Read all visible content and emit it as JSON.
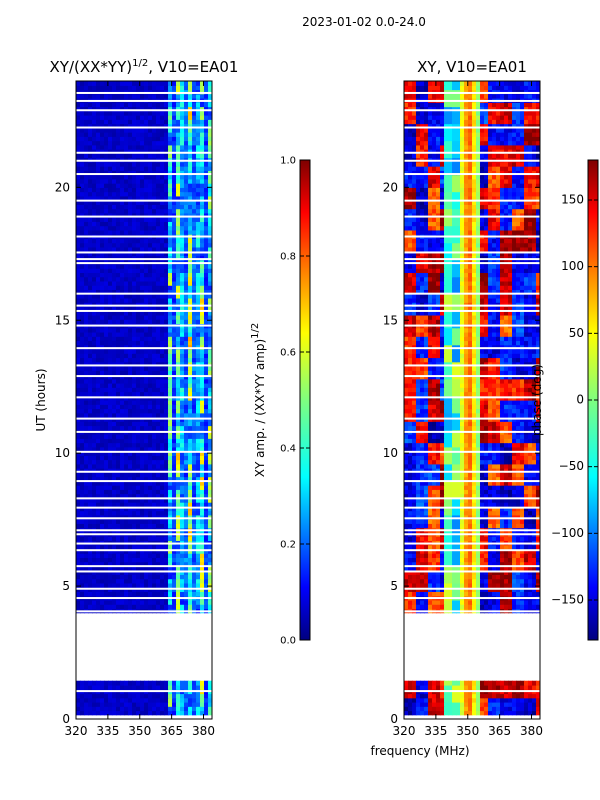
{
  "figure": {
    "suptitle": "2023-01-02 0.0-24.0",
    "xlabel": "frequency (MHz)"
  },
  "colors": {
    "jet": [
      "#00007f",
      "#0000ff",
      "#007fff",
      "#00ffff",
      "#7fff7f",
      "#ffff00",
      "#ff7f00",
      "#ff0000",
      "#7f0000"
    ],
    "gap": "#ffffff",
    "axis": "#000000"
  },
  "chart_data": [
    {
      "type": "heatmap",
      "title_main": "XY/(XX*YY)",
      "title_sup": "1/2",
      "title_rest": ", V10=EA01",
      "xlabel": "",
      "ylabel": "UT (hours)",
      "xlim": [
        320,
        384
      ],
      "ylim": [
        0,
        24
      ],
      "xticks": [
        320,
        335,
        350,
        365,
        380
      ],
      "yticks": [
        0,
        5,
        10,
        15,
        20
      ],
      "colorbar": {
        "label_main": "XY amp. / (XX*YY amp)",
        "label_sup": "1/2",
        "range": [
          0.0,
          1.0
        ],
        "ticks": [
          "0.0",
          "0.2",
          "0.4",
          "0.6",
          "0.8",
          "1.0"
        ],
        "tick_values": [
          0.0,
          0.2,
          0.4,
          0.6,
          0.8,
          1.0
        ]
      },
      "data_ranges_hours": [
        [
          0.1,
          1.3
        ],
        [
          3.9,
          23.9
        ]
      ],
      "gap_times_hours": [
        1.05,
        4.05,
        4.55,
        4.9,
        5.55,
        5.75,
        6.35,
        6.6,
        6.95,
        7.1,
        7.55,
        7.95,
        8.3,
        8.95,
        9.3,
        10.05,
        10.8,
        11.3,
        12.1,
        12.9,
        13.3,
        13.95,
        14.8,
        15.35,
        15.55,
        16.0,
        17.15,
        17.3,
        17.55,
        18.15,
        18.9,
        19.5,
        20.5,
        21.0,
        21.3,
        22.25,
        22.9,
        23.25,
        23.55
      ],
      "bright_band_mhz": [
        363,
        384
      ],
      "typical_values": {
        "low_band": 0.05,
        "high_band": 0.5
      }
    },
    {
      "type": "heatmap",
      "title_main": "XY, V10=EA01",
      "title_sup": "",
      "title_rest": "",
      "xlabel": "",
      "ylabel": "",
      "xlim": [
        320,
        384
      ],
      "ylim": [
        0,
        24
      ],
      "xticks": [
        320,
        335,
        350,
        365,
        380
      ],
      "yticks": [
        0,
        5,
        10,
        15,
        20
      ],
      "colorbar": {
        "label_main": "phase (deg)",
        "label_sup": "",
        "range": [
          -180,
          180
        ],
        "ticks": [
          "150",
          "100",
          "50",
          "0",
          "−50",
          "−100",
          "−150"
        ],
        "tick_values": [
          150,
          100,
          50,
          0,
          -50,
          -100,
          -150
        ]
      },
      "data_ranges_hours": [
        [
          0.1,
          1.3
        ],
        [
          3.9,
          23.9
        ]
      ],
      "gap_times_hours": [
        1.05,
        4.05,
        4.55,
        4.9,
        5.55,
        5.75,
        6.35,
        6.6,
        6.95,
        7.1,
        7.55,
        7.95,
        8.3,
        8.95,
        9.3,
        10.05,
        10.8,
        11.3,
        12.1,
        12.9,
        13.3,
        13.95,
        14.8,
        15.35,
        15.55,
        16.0,
        17.15,
        17.3,
        17.55,
        18.15,
        18.9,
        19.5,
        20.5,
        21.0,
        21.3,
        22.25,
        22.9,
        23.25,
        23.55
      ],
      "stable_band_mhz": [
        345,
        354
      ],
      "stable_phase_deg": -40
    }
  ]
}
